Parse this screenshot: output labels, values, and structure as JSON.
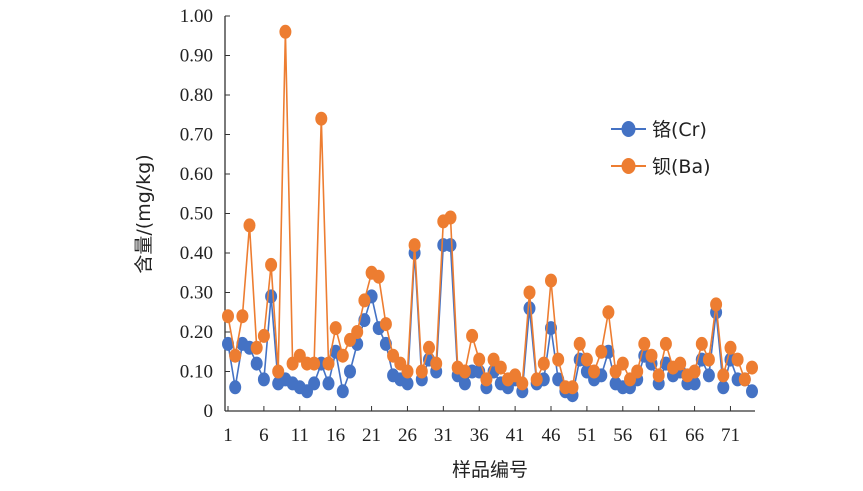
{
  "chart_data": {
    "type": "line",
    "xlabel": "样品编号",
    "ylabel": "含量/(mg/kg)",
    "ylim": [
      0,
      1.0
    ],
    "x_range": [
      1,
      74
    ],
    "x_ticks": [
      1,
      6,
      11,
      16,
      21,
      26,
      31,
      36,
      41,
      46,
      51,
      56,
      61,
      66,
      71
    ],
    "y_ticks": [
      "0",
      "0.10",
      "0.20",
      "0.30",
      "0.40",
      "0.50",
      "0.60",
      "0.70",
      "0.80",
      "0.90",
      "1.00"
    ],
    "grid": false,
    "legend_position": "right",
    "x": [
      1,
      2,
      3,
      4,
      5,
      6,
      7,
      8,
      9,
      10,
      11,
      12,
      13,
      14,
      15,
      16,
      17,
      18,
      19,
      20,
      21,
      22,
      23,
      24,
      25,
      26,
      27,
      28,
      29,
      30,
      31,
      32,
      33,
      34,
      35,
      36,
      37,
      38,
      39,
      40,
      41,
      42,
      43,
      44,
      45,
      46,
      47,
      48,
      49,
      50,
      51,
      52,
      53,
      54,
      55,
      56,
      57,
      58,
      59,
      60,
      61,
      62,
      63,
      64,
      65,
      66,
      67,
      68,
      69,
      70,
      71,
      72,
      73,
      74
    ],
    "series": [
      {
        "name": "铬(Cr)",
        "color": "#4472C4",
        "values": [
          0.17,
          0.06,
          0.17,
          0.16,
          0.12,
          0.08,
          0.29,
          0.07,
          0.08,
          0.07,
          0.06,
          0.05,
          0.07,
          0.12,
          0.07,
          0.15,
          0.05,
          0.1,
          0.17,
          0.23,
          0.29,
          0.21,
          0.17,
          0.09,
          0.08,
          0.07,
          0.4,
          0.08,
          0.13,
          0.1,
          0.42,
          0.42,
          0.09,
          0.07,
          0.1,
          0.1,
          0.06,
          0.1,
          0.07,
          0.06,
          0.08,
          0.05,
          0.26,
          0.07,
          0.08,
          0.21,
          0.08,
          0.05,
          0.04,
          0.13,
          0.1,
          0.08,
          0.09,
          0.15,
          0.07,
          0.06,
          0.06,
          0.08,
          0.14,
          0.12,
          0.07,
          0.12,
          0.09,
          0.1,
          0.07,
          0.07,
          0.13,
          0.09,
          0.25,
          0.06,
          0.13,
          0.08,
          0.08,
          0.05
        ]
      },
      {
        "name": "钡(Ba)",
        "color": "#ED7D31",
        "values": [
          0.24,
          0.14,
          0.24,
          0.47,
          0.16,
          0.19,
          0.37,
          0.1,
          0.96,
          0.12,
          0.14,
          0.12,
          0.12,
          0.74,
          0.12,
          0.21,
          0.14,
          0.18,
          0.2,
          0.28,
          0.35,
          0.34,
          0.22,
          0.14,
          0.12,
          0.1,
          0.42,
          0.1,
          0.16,
          0.12,
          0.48,
          0.49,
          0.11,
          0.1,
          0.19,
          0.13,
          0.08,
          0.13,
          0.11,
          0.08,
          0.09,
          0.07,
          0.3,
          0.08,
          0.12,
          0.33,
          0.13,
          0.06,
          0.06,
          0.17,
          0.13,
          0.1,
          0.15,
          0.25,
          0.1,
          0.12,
          0.08,
          0.1,
          0.17,
          0.14,
          0.09,
          0.17,
          0.11,
          0.12,
          0.09,
          0.1,
          0.17,
          0.13,
          0.27,
          0.09,
          0.16,
          0.13,
          0.08,
          0.11
        ]
      }
    ]
  }
}
